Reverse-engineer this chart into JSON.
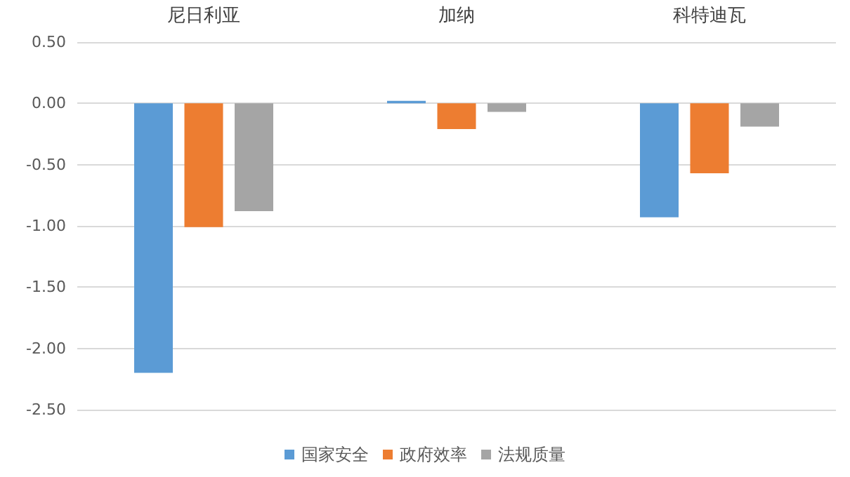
{
  "chart_data": {
    "type": "bar",
    "categories": [
      "尼日利亚",
      "加纳",
      "科特迪瓦"
    ],
    "series": [
      {
        "name": "国家安全",
        "color": "#5b9bd5",
        "values": [
          -2.2,
          0.02,
          -0.93
        ]
      },
      {
        "name": "政府效率",
        "color": "#ed7d31",
        "values": [
          -1.01,
          -0.21,
          -0.57
        ]
      },
      {
        "name": "法规质量",
        "color": "#a5a5a5",
        "values": [
          -0.88,
          -0.07,
          -0.19
        ]
      }
    ],
    "ylim": [
      -2.5,
      0.5
    ],
    "yticks": [
      {
        "value": -2.5,
        "label": "-2.50"
      },
      {
        "value": -2,
        "label": "-2.00"
      },
      {
        "value": -1.5,
        "label": "-1.50"
      },
      {
        "value": -1,
        "label": "-1.00"
      },
      {
        "value": -0.5,
        "label": "-0.50"
      },
      {
        "value": 0,
        "label": "0.00"
      },
      {
        "value": 0.5,
        "label": "0.50"
      }
    ],
    "grid": "y",
    "legend": "bottom"
  }
}
